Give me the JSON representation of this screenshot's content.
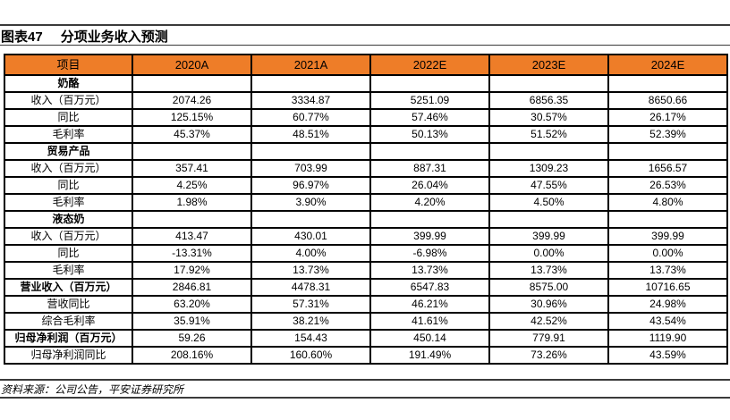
{
  "figure": {
    "label": "图表47",
    "title": "分项业务收入预测",
    "source": "资料来源：公司公告，平安证券研究所"
  },
  "colors": {
    "header_bg": "#EE7D28",
    "grid_border": "#000000",
    "rule": "#3A3A3A"
  },
  "table": {
    "header": [
      "项目",
      "2020A",
      "2021A",
      "2022E",
      "2023E",
      "2024E"
    ],
    "rows": [
      {
        "label": "奶酪",
        "bold": true,
        "values": [
          "",
          "",
          "",
          "",
          ""
        ]
      },
      {
        "label": "收入（百万元）",
        "bold": false,
        "values": [
          "2074.26",
          "3334.87",
          "5251.09",
          "6856.35",
          "8650.66"
        ]
      },
      {
        "label": "同比",
        "bold": false,
        "values": [
          "125.15%",
          "60.77%",
          "57.46%",
          "30.57%",
          "26.17%"
        ]
      },
      {
        "label": "毛利率",
        "bold": false,
        "values": [
          "45.37%",
          "48.51%",
          "50.13%",
          "51.52%",
          "52.39%"
        ]
      },
      {
        "label": "贸易产品",
        "bold": true,
        "values": [
          "",
          "",
          "",
          "",
          ""
        ]
      },
      {
        "label": "收入（百万元）",
        "bold": false,
        "values": [
          "357.41",
          "703.99",
          "887.31",
          "1309.23",
          "1656.57"
        ]
      },
      {
        "label": "同比",
        "bold": false,
        "values": [
          "4.25%",
          "96.97%",
          "26.04%",
          "47.55%",
          "26.53%"
        ]
      },
      {
        "label": "毛利率",
        "bold": false,
        "values": [
          "1.98%",
          "3.90%",
          "4.20%",
          "4.50%",
          "4.80%"
        ]
      },
      {
        "label": "液态奶",
        "bold": true,
        "values": [
          "",
          "",
          "",
          "",
          ""
        ]
      },
      {
        "label": "收入（百万元）",
        "bold": false,
        "values": [
          "413.47",
          "430.01",
          "399.99",
          "399.99",
          "399.99"
        ]
      },
      {
        "label": "同比",
        "bold": false,
        "values": [
          "-13.31%",
          "4.00%",
          "-6.98%",
          "0.00%",
          "0.00%"
        ]
      },
      {
        "label": "毛利率",
        "bold": false,
        "values": [
          "17.92%",
          "13.73%",
          "13.73%",
          "13.73%",
          "13.73%"
        ]
      },
      {
        "label": "营业收入（百万元）",
        "bold": true,
        "values": [
          "2846.81",
          "4478.31",
          "6547.83",
          "8575.00",
          "10716.65"
        ]
      },
      {
        "label": "营收同比",
        "bold": false,
        "values": [
          "63.20%",
          "57.31%",
          "46.21%",
          "30.96%",
          "24.98%"
        ]
      },
      {
        "label": "综合毛利率",
        "bold": false,
        "values": [
          "35.91%",
          "38.21%",
          "41.61%",
          "42.52%",
          "43.54%"
        ]
      },
      {
        "label": "归母净利润（百万元）",
        "bold": true,
        "values": [
          "59.26",
          "154.43",
          "450.14",
          "779.91",
          "1119.90"
        ]
      },
      {
        "label": "归母净利润同比",
        "bold": false,
        "values": [
          "208.16%",
          "160.60%",
          "191.49%",
          "73.26%",
          "43.59%"
        ]
      }
    ]
  }
}
